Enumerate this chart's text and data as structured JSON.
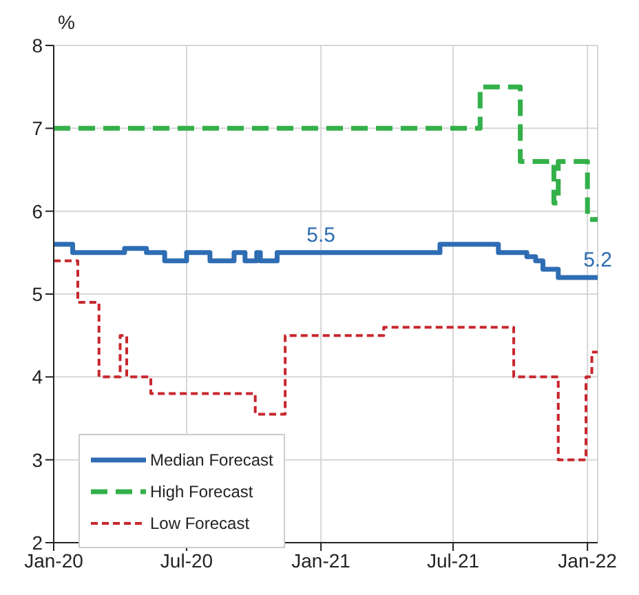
{
  "chart_data": {
    "type": "step",
    "ylabel": "%",
    "xlim": [
      "2020-01-01",
      "2022-01-15"
    ],
    "xticks": [
      {
        "value": "2020-01-01",
        "label": "Jan-20"
      },
      {
        "value": "2020-07-01",
        "label": "Jul-20"
      },
      {
        "value": "2021-01-01",
        "label": "Jan-21"
      },
      {
        "value": "2021-07-01",
        "label": "Jul-21"
      },
      {
        "value": "2022-01-01",
        "label": "Jan-22"
      }
    ],
    "ylim": [
      2,
      8
    ],
    "yticks": [
      2,
      3,
      4,
      5,
      6,
      7,
      8
    ],
    "grid": true,
    "legend": "bottom left",
    "marker": "none",
    "series": [
      {
        "name": "Median Forecast",
        "color": "#2e6db4",
        "line_style": "solid",
        "x": [
          "2020-01-01",
          "2020-01-27",
          "2020-04-07",
          "2020-05-07",
          "2020-06-01",
          "2020-07-01",
          "2020-08-02",
          "2020-09-04",
          "2020-09-19",
          "2020-10-05",
          "2020-10-10",
          "2020-11-02",
          "2021-06-13",
          "2021-09-01",
          "2021-10-10",
          "2021-10-22",
          "2021-11-01",
          "2021-11-22",
          "2022-01-15"
        ],
        "values": [
          5.6,
          5.5,
          5.55,
          5.5,
          5.4,
          5.5,
          5.4,
          5.5,
          5.4,
          5.5,
          5.4,
          5.5,
          5.6,
          5.5,
          5.45,
          5.4,
          5.3,
          5.2,
          5.2
        ]
      },
      {
        "name": "High Forecast",
        "color": "#33b04a",
        "line_style": "dashed",
        "x": [
          "2020-01-01",
          "2021-08-07",
          "2021-10-01",
          "2021-11-16",
          "2021-11-22",
          "2022-01-01",
          "2022-01-15"
        ],
        "values": [
          7,
          7.5,
          6.6,
          6.1,
          6.6,
          5.9,
          5.9
        ]
      },
      {
        "name": "Low Forecast",
        "color": "#c8262d",
        "line_style": "dotted",
        "x": [
          "2020-01-01",
          "2020-02-03",
          "2020-03-03",
          "2020-04-01",
          "2020-04-10",
          "2020-05-13",
          "2020-10-03",
          "2020-11-13",
          "2021-03-28",
          "2021-09-22",
          "2021-11-22",
          "2021-12-30",
          "2022-01-07",
          "2022-01-15"
        ],
        "values": [
          5.4,
          4.9,
          4.0,
          4.5,
          4.0,
          3.8,
          3.55,
          4.5,
          4.6,
          4.0,
          3.0,
          4.0,
          4.3,
          4.3
        ]
      }
    ],
    "annotations": [
      {
        "text": "5.5",
        "x": "2021-01-01",
        "y": 5.5
      },
      {
        "text": "5.2",
        "x": "2022-01-15",
        "y": 5.2
      }
    ]
  }
}
